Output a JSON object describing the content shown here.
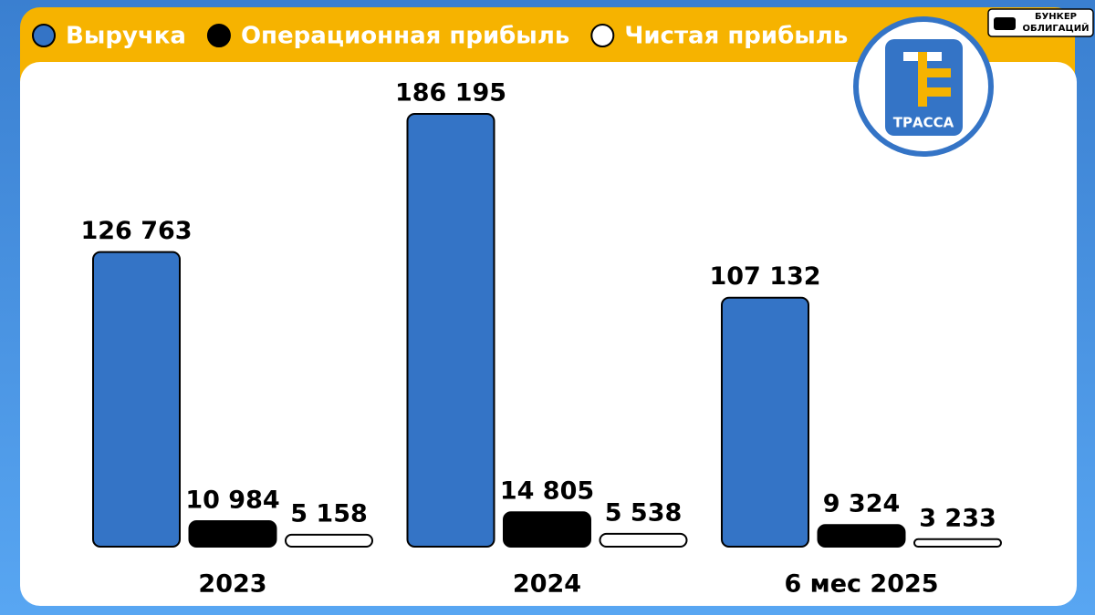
{
  "chart_data": {
    "type": "bar",
    "categories": [
      "2023",
      "2024",
      "6 мес 2025"
    ],
    "series": [
      {
        "name": "Выручка",
        "color": "#3474c6",
        "values": [
          126763,
          186195,
          107132
        ],
        "value_labels": [
          "126 763",
          "186 195",
          "107 132"
        ]
      },
      {
        "name": "Операционная прибыль",
        "color": "#000000",
        "values": [
          10984,
          14805,
          9324
        ],
        "value_labels": [
          "10 984",
          "14 805",
          "9 324"
        ]
      },
      {
        "name": "Чистая прибыль",
        "color": "#ffffff",
        "values": [
          5158,
          5538,
          3233
        ],
        "value_labels": [
          "5 158",
          "5 538",
          "3 233"
        ]
      }
    ]
  },
  "logo": {
    "text": "ТРАССА"
  },
  "badge": {
    "lines": [
      "БУНКЕР",
      "ОБЛИГАЦИЙ"
    ]
  }
}
